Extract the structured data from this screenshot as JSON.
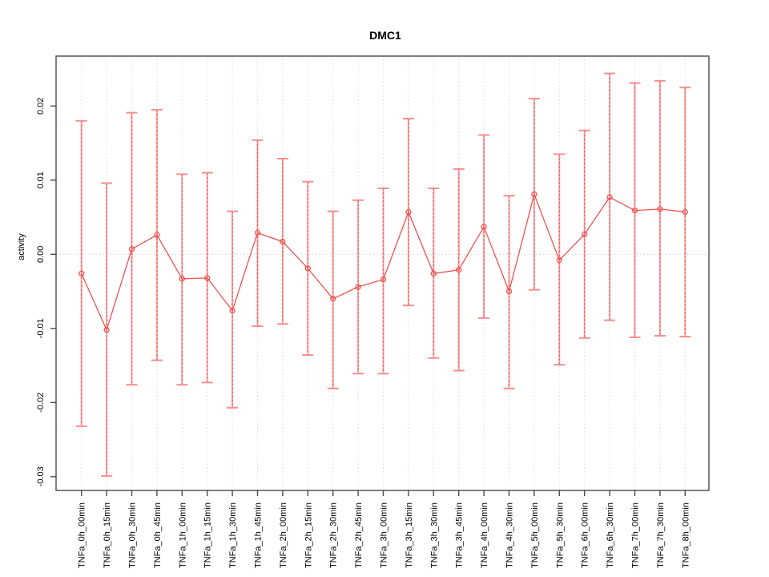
{
  "title": "DMC1",
  "ylabel": "activity",
  "chart_data": {
    "type": "errorbar-line",
    "title": "DMC1",
    "xlabel": "",
    "ylabel": "activity",
    "legend": "none",
    "grid": {
      "vertical_dotted_per_category": true,
      "horizontal_dotted_at_zero": true
    },
    "ylim": [
      -0.0319,
      0.0267
    ],
    "ytick_labels": [
      "0.02",
      "0.01",
      "0.00",
      "-0.01",
      "-0.02",
      "-0.03"
    ],
    "ytick_values": [
      0.02,
      0.01,
      0.0,
      -0.01,
      -0.02,
      -0.03
    ],
    "categories": [
      "TNFa_0h_00min",
      "TNFa_0h_15min",
      "TNFa_0h_30min",
      "TNFa_0h_45min",
      "TNFa_1h_00min",
      "TNFa_1h_15min",
      "TNFa_1h_30min",
      "TNFa_1h_45min",
      "TNFa_2h_00min",
      "TNFa_2h_15min",
      "TNFa_2h_30min",
      "TNFa_2h_45min",
      "TNFa_3h_00min",
      "TNFa_3h_15min",
      "TNFa_3h_30min",
      "TNFa_3h_45min",
      "TNFa_4h_00min",
      "TNFa_4h_30min",
      "TNFa_5h_00min",
      "TNFa_5h_30min",
      "TNFa_6h_00min",
      "TNFa_6h_30min",
      "TNFa_7h_00min",
      "TNFa_7h_30min",
      "TNFa_8h_00min"
    ],
    "series": [
      {
        "name": "activity",
        "centers": [
          -0.0026,
          -0.0102,
          0.0007,
          0.0026,
          -0.0033,
          -0.0032,
          -0.0076,
          0.0029,
          0.0017,
          -0.0019,
          -0.006,
          -0.0044,
          -0.0034,
          0.0057,
          -0.0026,
          -0.0021,
          0.0037,
          -0.005,
          0.0081,
          -0.0008,
          0.0027,
          0.0077,
          0.0059,
          0.0061,
          0.0057
        ],
        "upper": [
          0.018,
          0.0096,
          0.0191,
          0.0195,
          0.0108,
          0.011,
          0.0058,
          0.0154,
          0.0129,
          0.0098,
          0.0058,
          0.0073,
          0.0089,
          0.0183,
          0.0089,
          0.0115,
          0.0161,
          0.0079,
          0.021,
          0.0135,
          0.0167,
          0.0244,
          0.0231,
          0.0234,
          0.0225
        ],
        "lower": [
          -0.0232,
          -0.0299,
          -0.0176,
          -0.0143,
          -0.0176,
          -0.0173,
          -0.0207,
          -0.0097,
          -0.0094,
          -0.0136,
          -0.0181,
          -0.0161,
          -0.0161,
          -0.0069,
          -0.014,
          -0.0157,
          -0.0086,
          -0.0181,
          -0.0048,
          -0.0149,
          -0.0113,
          -0.0089,
          -0.0112,
          -0.011,
          -0.0111
        ]
      }
    ],
    "colors": {
      "error_bar": "#f9a2a2",
      "error_bar_dash": "#ef5a5a",
      "cap": "#f58f8f",
      "line": "#ef5350",
      "marker": "#ef5350",
      "grid": "#dcdcdc",
      "zero_line": "#cfcfcf",
      "axis": "#4a4a4a",
      "text": "#000000",
      "background": "#ffffff"
    }
  }
}
